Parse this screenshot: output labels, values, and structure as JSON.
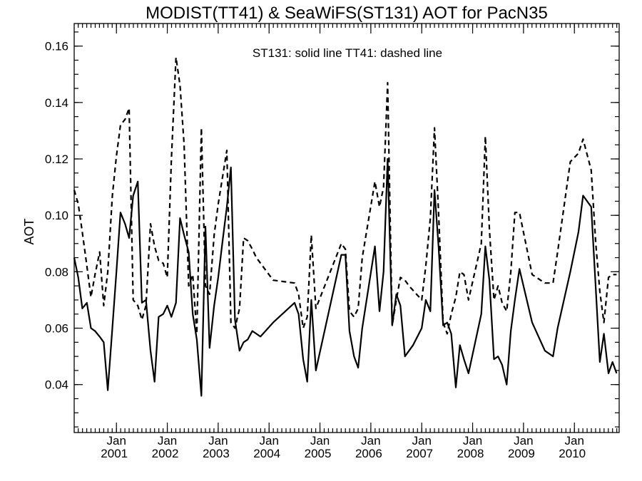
{
  "chart_data": {
    "type": "line",
    "title": "MODIST(TT41) & SeaWiFS(ST131)  AOT for PacN35",
    "annotation": "ST131: solid line   TT41: dashed line",
    "ylabel": "AOT",
    "xlabel": "",
    "ylim": [
      0.023,
      0.168
    ],
    "xlim": [
      2000.17,
      2010.88
    ],
    "yticks": [
      0.04,
      0.06,
      0.08,
      0.1,
      0.12,
      0.14,
      0.16
    ],
    "ytick_labels": [
      "0.04",
      "0.06",
      "0.08",
      "0.10",
      "0.12",
      "0.14",
      "0.16"
    ],
    "xticks": [
      {
        "x": 2001.0,
        "month": "Jan",
        "year": "2001"
      },
      {
        "x": 2002.0,
        "month": "Jan",
        "year": "2002"
      },
      {
        "x": 2003.0,
        "month": "Jan",
        "year": "2003"
      },
      {
        "x": 2004.0,
        "month": "Jan",
        "year": "2004"
      },
      {
        "x": 2005.0,
        "month": "Jan",
        "year": "2005"
      },
      {
        "x": 2006.0,
        "month": "Jan",
        "year": "2006"
      },
      {
        "x": 2007.0,
        "month": "Jan",
        "year": "2007"
      },
      {
        "x": 2008.0,
        "month": "Jan",
        "year": "2008"
      },
      {
        "x": 2009.0,
        "month": "Jan",
        "year": "2009"
      },
      {
        "x": 2010.0,
        "month": "Jan",
        "year": "2010"
      }
    ],
    "grid": false,
    "series": [
      {
        "name": "ST131",
        "style": "solid",
        "x": [
          2000.17,
          2000.25,
          2000.33,
          2000.42,
          2000.5,
          2000.58,
          2000.67,
          2000.75,
          2000.83,
          2000.92,
          2001.0,
          2001.08,
          2001.17,
          2001.25,
          2001.33,
          2001.42,
          2001.5,
          2001.58,
          2001.67,
          2001.75,
          2001.83,
          2001.92,
          2002.0,
          2002.08,
          2002.17,
          2002.25,
          2002.33,
          2002.42,
          2002.5,
          2002.58,
          2002.67,
          2002.75,
          2002.83,
          2002.92,
          2003.0,
          2003.08,
          2003.17,
          2003.25,
          2003.33,
          2003.42,
          2003.5,
          2003.58,
          2003.67,
          2003.75,
          2003.83,
          2004.08,
          2004.5,
          2004.58,
          2004.67,
          2004.75,
          2004.83,
          2004.92,
          2005.42,
          2005.5,
          2005.58,
          2005.67,
          2005.75,
          2005.83,
          2006.08,
          2006.17,
          2006.25,
          2006.33,
          2006.42,
          2006.5,
          2006.58,
          2006.67,
          2006.75,
          2006.83,
          2007.0,
          2007.08,
          2007.17,
          2007.25,
          2007.33,
          2007.42,
          2007.5,
          2007.58,
          2007.67,
          2007.75,
          2007.83,
          2007.92,
          2008.17,
          2008.25,
          2008.33,
          2008.42,
          2008.5,
          2008.58,
          2008.67,
          2008.75,
          2008.83,
          2008.92,
          2009.17,
          2009.42,
          2009.58,
          2009.67,
          2009.92,
          2010.08,
          2010.17,
          2010.33,
          2010.42,
          2010.5,
          2010.58,
          2010.67,
          2010.75,
          2010.83
        ],
        "values": [
          0.085,
          0.078,
          0.067,
          0.069,
          0.06,
          0.059,
          0.057,
          0.055,
          0.038,
          0.06,
          0.08,
          0.101,
          0.097,
          0.092,
          0.107,
          0.112,
          0.069,
          0.07,
          0.052,
          0.041,
          0.064,
          0.065,
          0.068,
          0.064,
          0.069,
          0.099,
          0.093,
          0.087,
          0.065,
          0.056,
          0.036,
          0.096,
          0.053,
          0.068,
          0.078,
          0.09,
          0.103,
          0.117,
          0.063,
          0.052,
          0.055,
          0.056,
          0.059,
          0.058,
          0.057,
          0.062,
          0.069,
          0.065,
          0.049,
          0.041,
          0.07,
          0.045,
          0.086,
          0.086,
          0.059,
          0.05,
          0.046,
          0.06,
          0.089,
          0.066,
          0.08,
          0.12,
          0.061,
          0.072,
          0.068,
          0.05,
          0.052,
          0.054,
          0.06,
          0.07,
          0.066,
          0.109,
          0.089,
          0.061,
          0.062,
          0.058,
          0.039,
          0.054,
          0.049,
          0.044,
          0.065,
          0.089,
          0.077,
          0.049,
          0.05,
          0.047,
          0.04,
          0.059,
          0.07,
          0.081,
          0.062,
          0.052,
          0.05,
          0.06,
          0.08,
          0.094,
          0.107,
          0.103,
          0.074,
          0.048,
          0.058,
          0.044,
          0.048,
          0.044
        ]
      },
      {
        "name": "TT41",
        "style": "dashed",
        "x": [
          2000.17,
          2000.25,
          2000.33,
          2000.42,
          2000.5,
          2000.58,
          2000.67,
          2000.75,
          2000.83,
          2000.92,
          2001.0,
          2001.08,
          2001.17,
          2001.25,
          2001.33,
          2001.42,
          2001.5,
          2001.58,
          2001.67,
          2001.75,
          2001.83,
          2001.92,
          2002.0,
          2002.08,
          2002.17,
          2002.25,
          2002.33,
          2002.42,
          2002.5,
          2002.58,
          2002.67,
          2002.75,
          2002.83,
          2002.92,
          2003.0,
          2003.08,
          2003.17,
          2003.25,
          2003.33,
          2003.42,
          2003.5,
          2003.58,
          2003.67,
          2003.75,
          2004.08,
          2004.5,
          2004.58,
          2004.67,
          2004.75,
          2004.83,
          2004.92,
          2005.42,
          2005.5,
          2005.58,
          2005.67,
          2005.75,
          2005.83,
          2006.08,
          2006.17,
          2006.25,
          2006.33,
          2006.42,
          2006.5,
          2006.58,
          2006.67,
          2006.75,
          2007.0,
          2007.08,
          2007.17,
          2007.25,
          2007.33,
          2007.42,
          2007.5,
          2007.58,
          2007.67,
          2007.75,
          2007.83,
          2007.92,
          2008.17,
          2008.25,
          2008.33,
          2008.42,
          2008.5,
          2008.58,
          2008.67,
          2008.75,
          2008.83,
          2008.92,
          2009.17,
          2009.42,
          2009.58,
          2009.67,
          2009.92,
          2010.08,
          2010.17,
          2010.33,
          2010.42,
          2010.5,
          2010.58,
          2010.67,
          2010.75,
          2010.83
        ],
        "values": [
          0.109,
          0.104,
          0.094,
          0.082,
          0.071,
          0.079,
          0.087,
          0.068,
          0.08,
          0.107,
          0.121,
          0.132,
          0.134,
          0.138,
          0.07,
          0.068,
          0.063,
          0.068,
          0.097,
          0.089,
          0.084,
          0.083,
          0.078,
          0.12,
          0.156,
          0.146,
          0.125,
          0.075,
          0.079,
          0.058,
          0.131,
          0.075,
          0.072,
          0.093,
          0.104,
          0.113,
          0.123,
          0.062,
          0.06,
          0.067,
          0.092,
          0.091,
          0.088,
          0.085,
          0.077,
          0.076,
          0.072,
          0.06,
          0.064,
          0.093,
          0.067,
          0.09,
          0.088,
          0.066,
          0.064,
          0.067,
          0.085,
          0.112,
          0.103,
          0.11,
          0.147,
          0.061,
          0.07,
          0.078,
          0.077,
          0.075,
          0.07,
          0.082,
          0.099,
          0.131,
          0.101,
          0.062,
          0.058,
          0.065,
          0.071,
          0.08,
          0.079,
          0.07,
          0.09,
          0.128,
          0.095,
          0.07,
          0.075,
          0.069,
          0.066,
          0.08,
          0.101,
          0.101,
          0.079,
          0.076,
          0.076,
          0.087,
          0.119,
          0.122,
          0.127,
          0.116,
          0.09,
          0.073,
          0.062,
          0.078,
          0.079,
          0.079
        ]
      }
    ]
  }
}
